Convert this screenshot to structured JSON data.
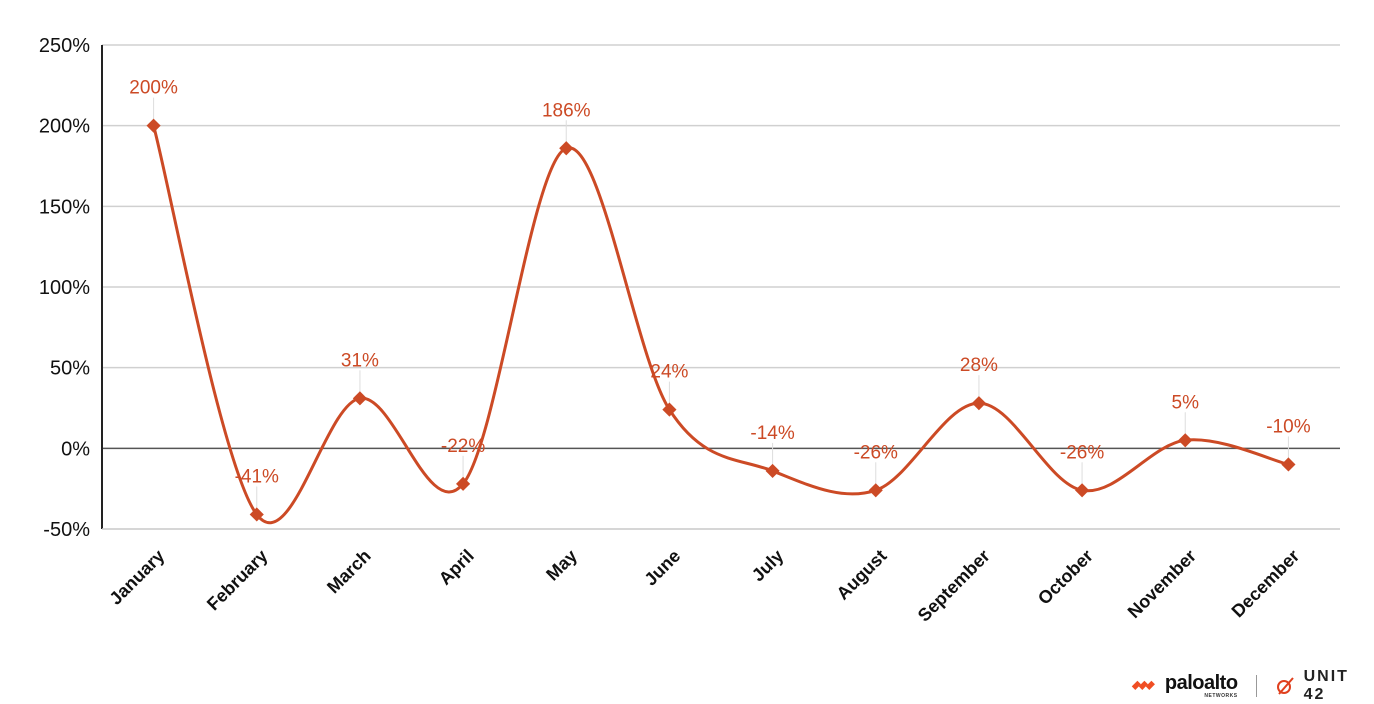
{
  "chart_data": {
    "type": "line",
    "smooth": true,
    "categories": [
      "January",
      "February",
      "March",
      "April",
      "May",
      "June",
      "July",
      "August",
      "September",
      "October",
      "November",
      "December"
    ],
    "series": [
      {
        "values": [
          200,
          -41,
          31,
          -22,
          186,
          24,
          -14,
          -26,
          28,
          -26,
          5,
          -10
        ],
        "color": "#cc4a25"
      }
    ],
    "data_labels": [
      "200%",
      "-41%",
      "31%",
      "-22%",
      "186%",
      "24%",
      "-14%",
      "-26%",
      "28%",
      "-26%",
      "5%",
      "-10%"
    ],
    "yticks": [
      250,
      200,
      150,
      100,
      50,
      0,
      -50
    ],
    "ytick_labels": [
      "250%",
      "200%",
      "150%",
      "100%",
      "50%",
      "0%",
      "-50%"
    ],
    "ylim": [
      -50,
      250
    ],
    "grid": true,
    "marker": "diamond"
  },
  "branding": {
    "logo1": "paloalto",
    "logo1_sub": "NETWORKS",
    "logo2": "UNIT 42"
  }
}
